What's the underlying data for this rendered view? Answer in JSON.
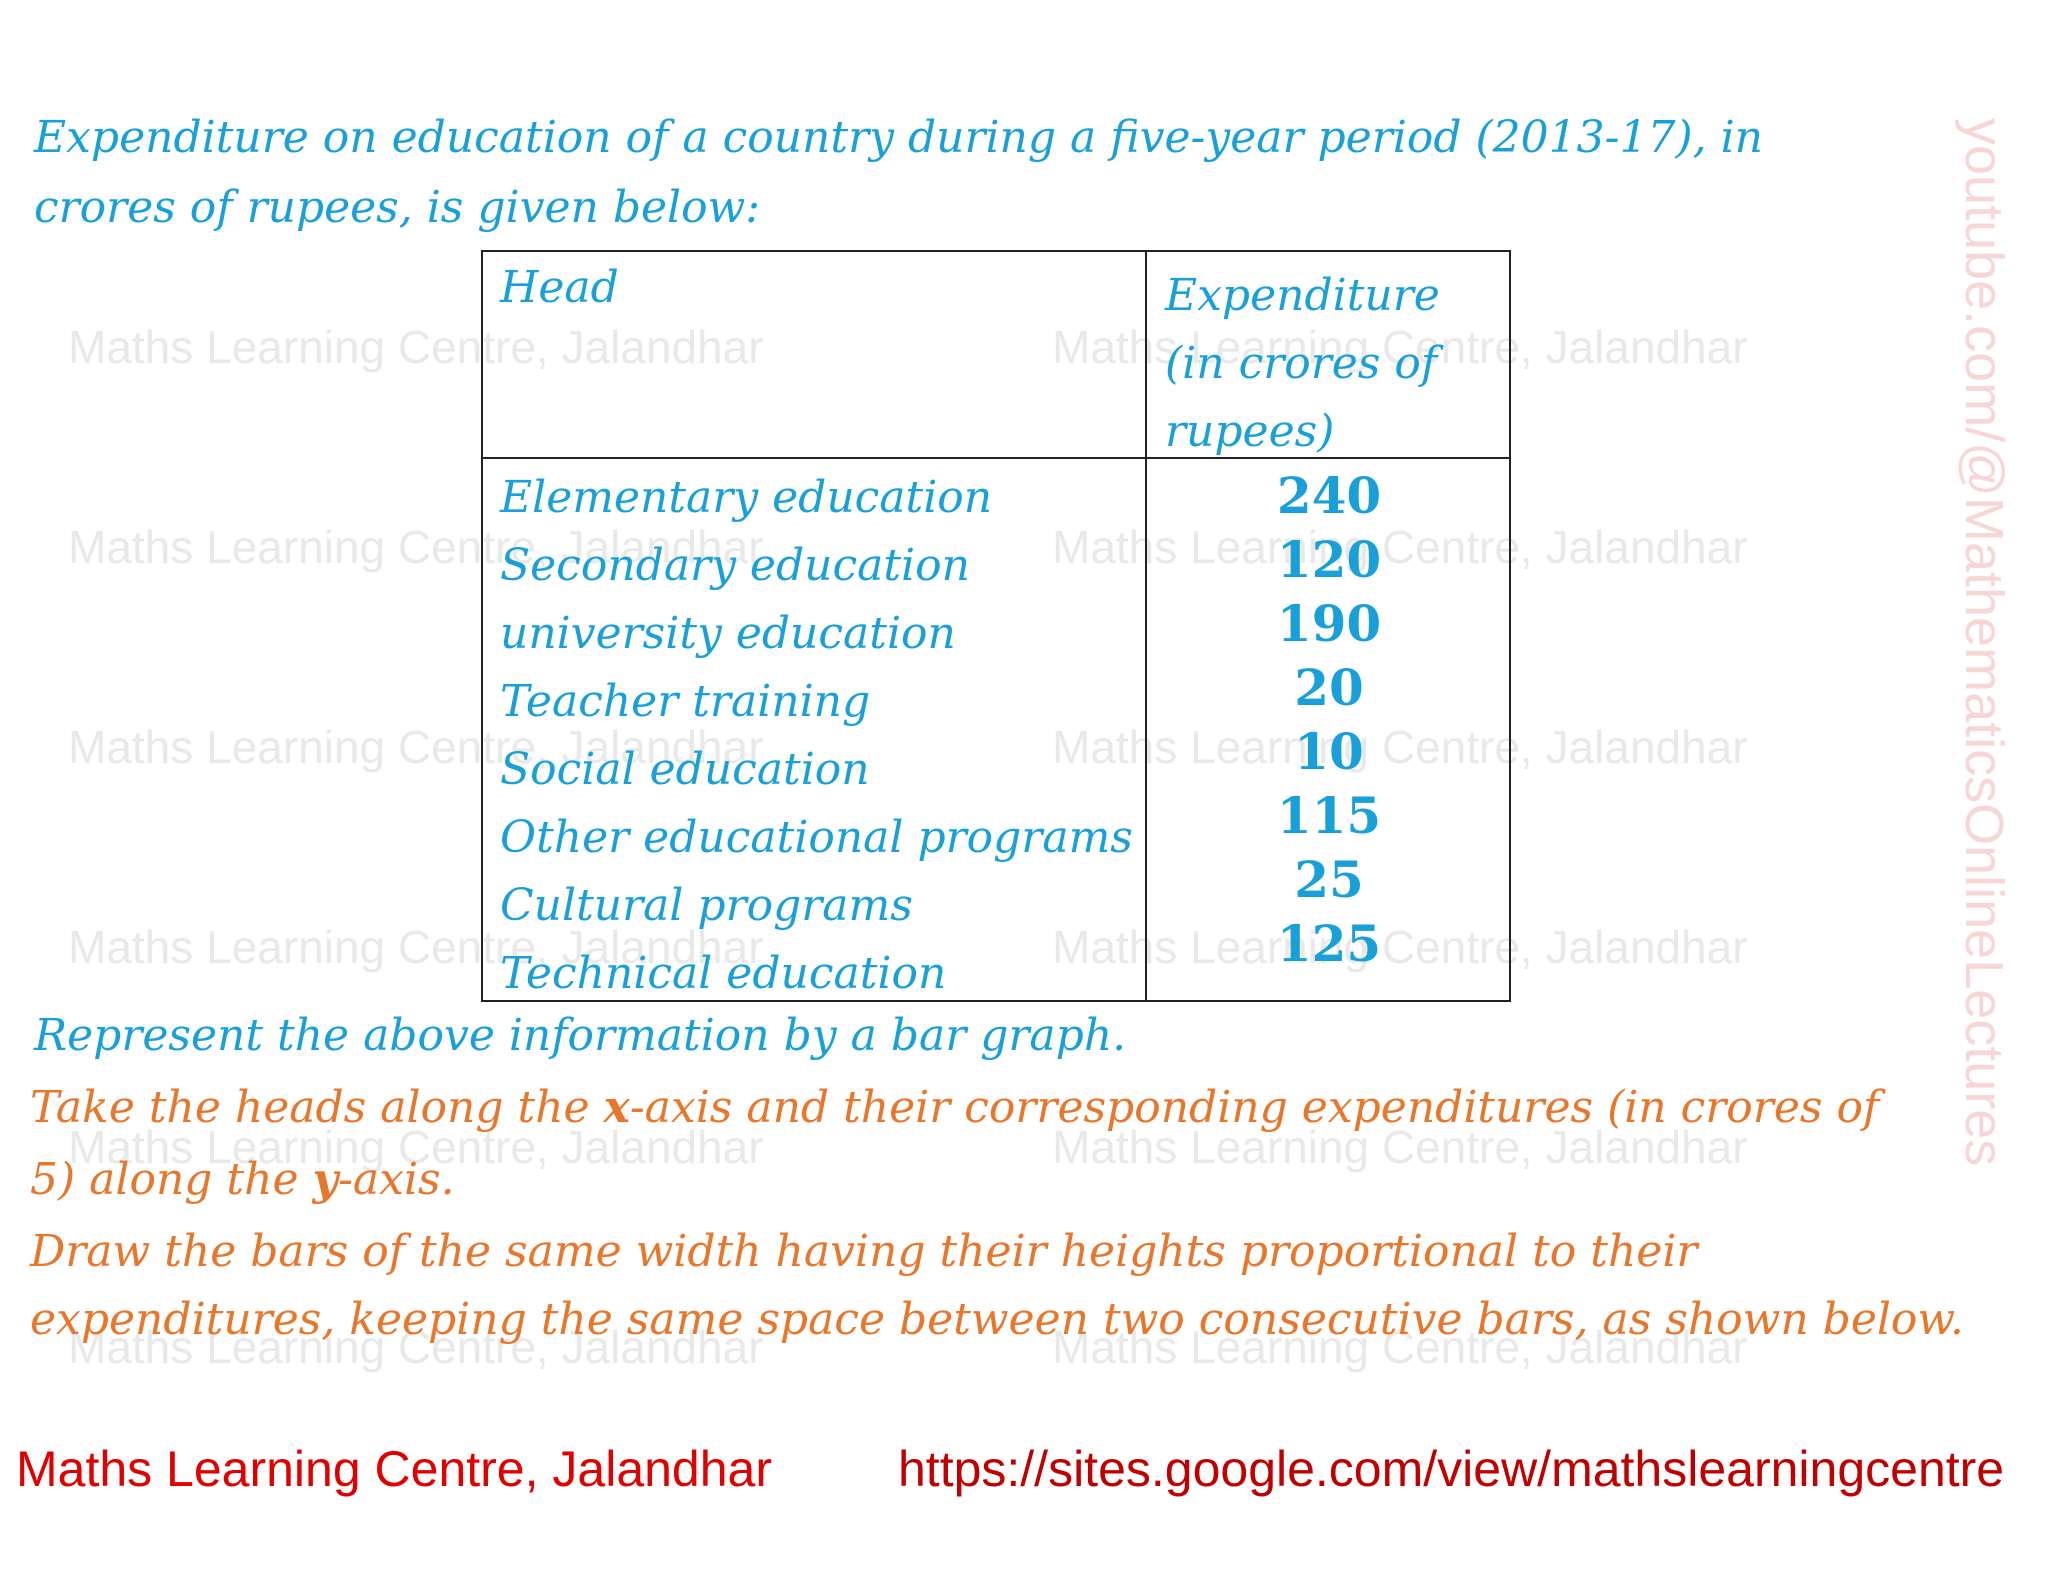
{
  "intro": {
    "line1": "Expenditure on education of a country during a five-year period (2013-17), in",
    "line2": "crores of rupees, is given below:"
  },
  "table": {
    "header_head": "Head",
    "header_expenditure": "Expenditure (in crores of rupees)",
    "rows": [
      {
        "head": "Elementary education",
        "value": "240"
      },
      {
        "head": "Secondary education",
        "value": "120"
      },
      {
        "head": "university education",
        "value": "190"
      },
      {
        "head": "Teacher training",
        "value": "20"
      },
      {
        "head": "Social education",
        "value": "10"
      },
      {
        "head": "Other educational programs",
        "value": "115"
      },
      {
        "head": "Cultural programs",
        "value": "25"
      },
      {
        "head": "Technical education",
        "value": "125"
      }
    ]
  },
  "instructions": {
    "represent": "Represent the above information by a bar graph.",
    "take_a": "Take the heads along the ",
    "x_var": "x",
    "take_b": "-axis and their corresponding expenditures (in crores of",
    "take_c": "5) along the ",
    "y_var": "y",
    "take_d": "-axis.",
    "draw1": "Draw the bars of the same width having their heights proportional to their",
    "draw2": "expenditures, keeping the same space between two consecutive bars, as shown below."
  },
  "footer": {
    "left": "Maths Learning Centre, Jalandhar",
    "right": "https://sites.google.com/view/mathslearningcentre"
  },
  "watermark": {
    "text": "Maths Learning Centre, Jalandhar",
    "side": "youtube.com/@MathematicsOnlineLectures"
  },
  "colors": {
    "blue": "#1aa0d8",
    "orange": "#e8762b",
    "footer_red": "#e00000"
  }
}
